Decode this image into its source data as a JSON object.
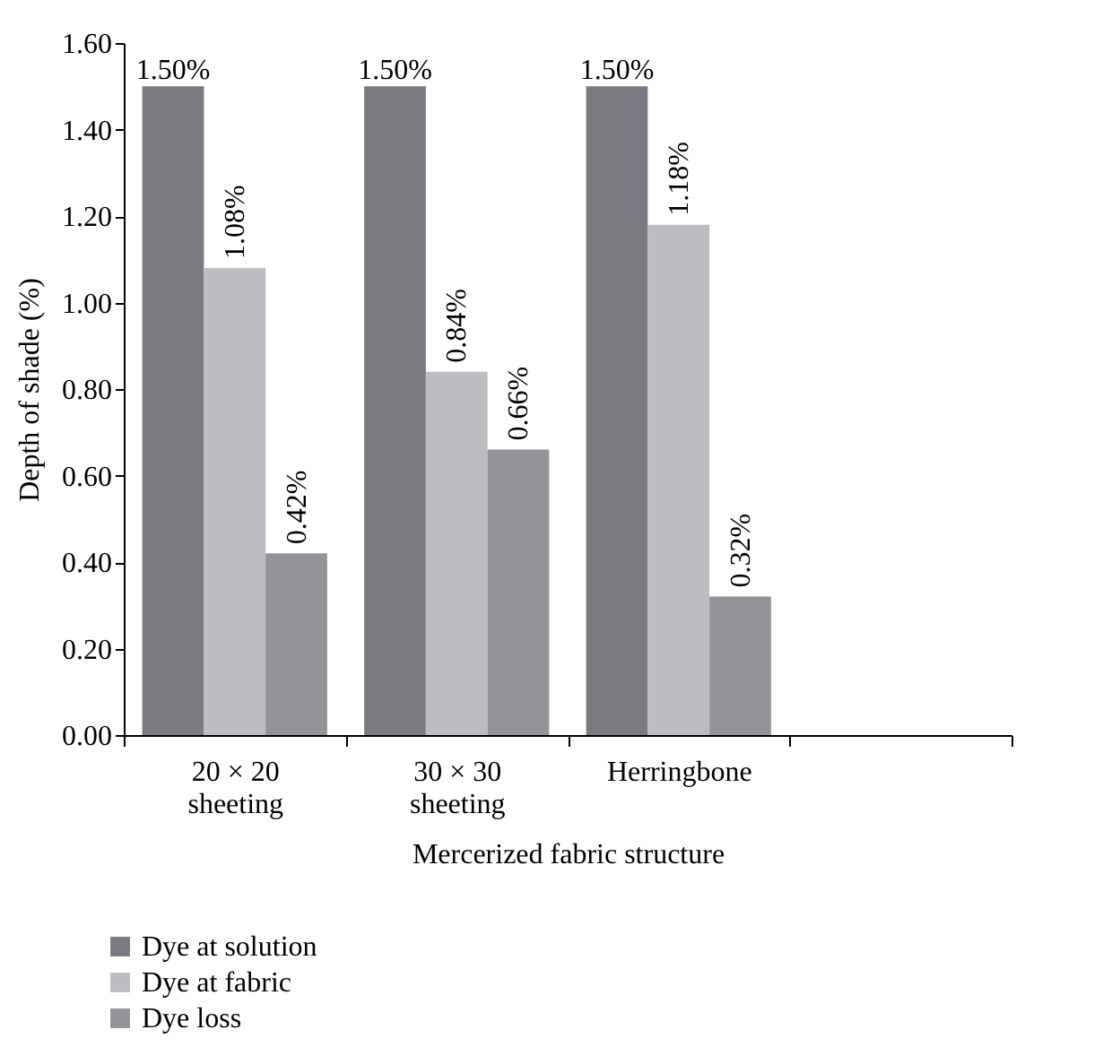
{
  "chart_data": {
    "type": "bar",
    "xlabel": "Mercerized fabric structure",
    "ylabel": "Depth of shade (%)",
    "categories": [
      "20 × 20 sheeting",
      "30 × 30 sheeting",
      "Herringbone",
      null
    ],
    "series": [
      {
        "name": "Dye at solution",
        "color": "#7a7b80",
        "values": [
          1.5,
          1.5,
          1.5,
          null
        ],
        "value_labels": [
          "1.50%",
          "1.50%",
          "1.50%",
          null
        ]
      },
      {
        "name": "Dye at fabric",
        "color": "#bcbdc1",
        "values": [
          1.08,
          0.84,
          1.18,
          null
        ],
        "value_labels": [
          "1.08%",
          "0.84%",
          "1.18%",
          null
        ]
      },
      {
        "name": "Dye loss",
        "color": "#939497",
        "values": [
          0.42,
          0.66,
          0.32,
          null
        ],
        "value_labels": [
          "0.42%",
          "0.66%",
          "0.32%",
          null
        ]
      }
    ],
    "ylim": [
      0,
      1.6
    ],
    "yticks": [
      {
        "value": 0,
        "label": "0.00"
      },
      {
        "value": 0.2,
        "label": "0.20"
      },
      {
        "value": 0.4,
        "label": "0.40"
      },
      {
        "value": 0.6,
        "label": "0.60"
      },
      {
        "value": 0.8,
        "label": "0.80"
      },
      {
        "value": 1,
        "label": "1.00"
      },
      {
        "value": 1.2,
        "label": "1.20"
      },
      {
        "value": 1.4,
        "label": "1.40"
      },
      {
        "value": 1.6,
        "label": "1.60"
      }
    ],
    "grid": false,
    "legend": "bottom left"
  }
}
